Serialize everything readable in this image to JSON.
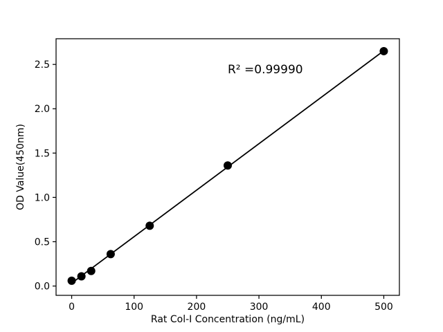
{
  "figure": {
    "background": "#ffffff",
    "foreground": "#000000"
  },
  "chart_data": {
    "type": "scatter",
    "title": "",
    "xlabel": "Rat Col-I Concentration (ng/mL)",
    "ylabel": "OD Value(450nm)",
    "x": [
      0,
      15.625,
      31.25,
      62.5,
      125,
      250,
      500
    ],
    "y": [
      0.06,
      0.11,
      0.17,
      0.36,
      0.68,
      1.36,
      2.65
    ],
    "fit_line": true,
    "annotation": {
      "text": "R² =0.99990",
      "x": 250,
      "y": 2.4
    },
    "r_squared": 0.9999,
    "xticks": {
      "values": [
        0,
        100,
        200,
        300,
        400,
        500
      ],
      "labels": [
        "0",
        "100",
        "200",
        "300",
        "400",
        "500"
      ]
    },
    "yticks": {
      "values": [
        0,
        0.5,
        1.0,
        1.5,
        2.0,
        2.5
      ],
      "labels": [
        "0.0",
        "0.5",
        "1.0",
        "1.5",
        "2.0",
        "2.5"
      ]
    },
    "xlim": [
      -25,
      525
    ],
    "ylim": [
      -0.105,
      2.79
    ],
    "grid": false,
    "legend": null,
    "marker_color": "#000000",
    "line_color": "#000000"
  }
}
